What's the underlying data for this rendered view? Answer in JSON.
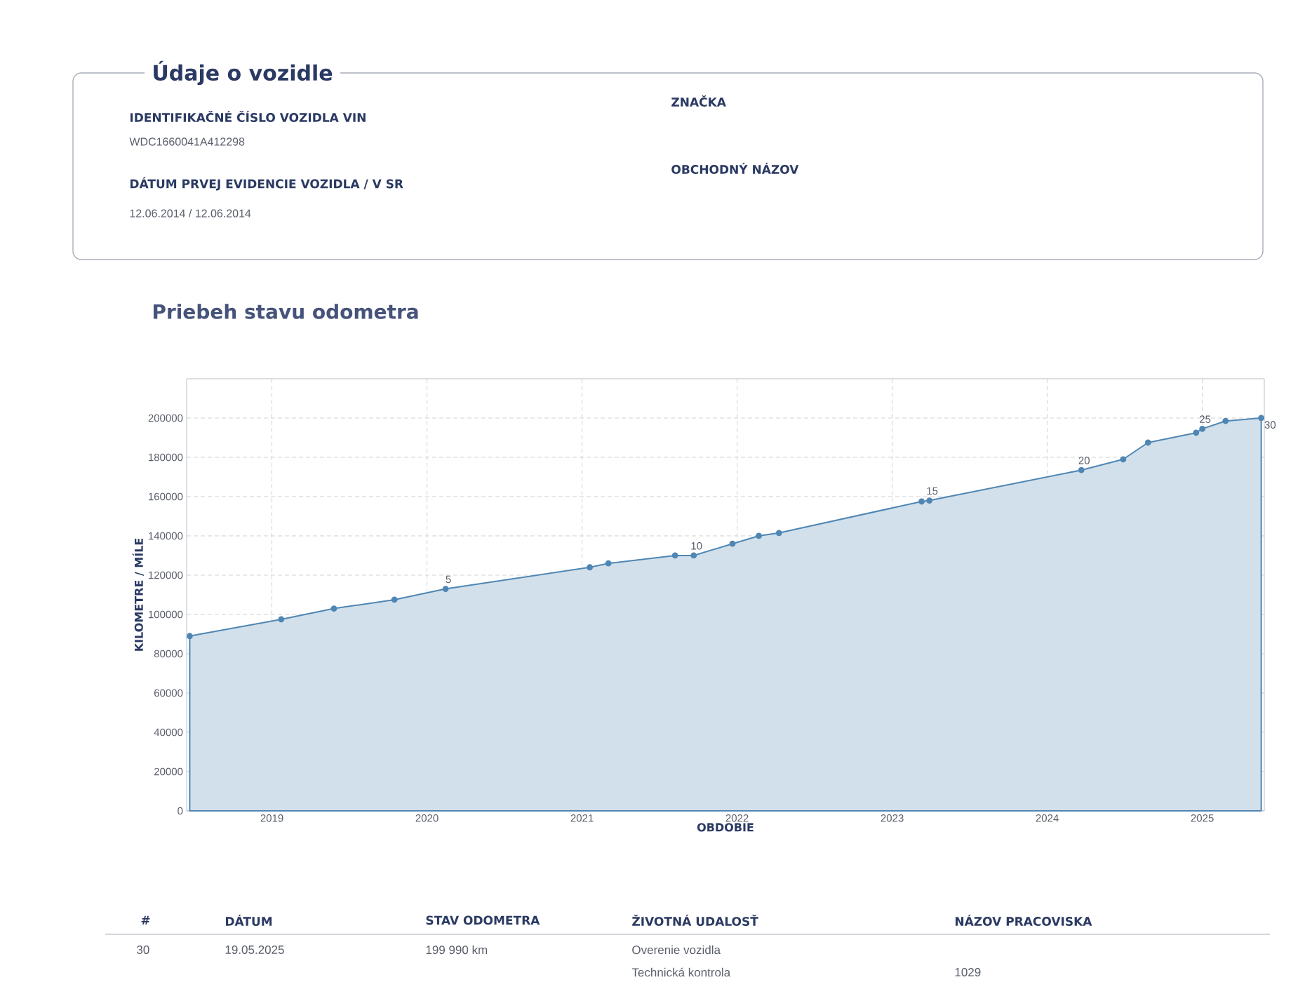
{
  "chart_data": {
    "type": "area",
    "title": "Priebeh stavu odometra",
    "xlabel": "OBDOBIE",
    "ylabel": "KILOMETRE / MÍLE",
    "x": [
      2018.47,
      2019.06,
      2019.4,
      2019.79,
      2020.12,
      2021.05,
      2021.17,
      2021.6,
      2021.72,
      2021.97,
      2022.14,
      2022.27,
      2023.19,
      2023.24,
      2024.22,
      2024.49,
      2024.65,
      2024.96,
      2025.0,
      2025.15,
      2025.38
    ],
    "values": [
      89000,
      97500,
      103000,
      107500,
      113000,
      124000,
      126000,
      130000,
      130000,
      136000,
      140000,
      141500,
      157500,
      158000,
      173500,
      179000,
      187500,
      192500,
      194500,
      198500,
      200000
    ],
    "color": "#4f86b3",
    "marker": "circle",
    "xlim": [
      2018.45,
      2025.4
    ],
    "xticks": [
      2019,
      2020,
      2021,
      2022,
      2023,
      2024,
      2025
    ],
    "ylim": [
      0,
      220000
    ],
    "yticks": [
      0,
      20000,
      40000,
      60000,
      80000,
      100000,
      120000,
      140000,
      160000,
      180000,
      200000
    ],
    "grid": true,
    "annotations": [
      "Údaje o vozidle",
      "IDENTIFIKAČNÉ ČÍSLO VOZIDLA VIN",
      "WDC1660041A412298",
      "DÁTUM PRVEJ EVIDENCIE VOZIDLA / V SR",
      "12.06.2014 / 12.06.2014",
      "ZNAČKA",
      "OBCHODNÝ NÁZOV",
      "#",
      "DÁTUM",
      "STAV ODOMETRA",
      "ŽIVOTNÁ UDALOSŤ",
      "NÁZOV PRACOVISKA",
      "30",
      "19.05.2025",
      "199 990 km",
      "Overenie vozidla",
      "Technická kontrola",
      "1029",
      {
        "text": "5",
        "x": 2020.12,
        "y": 113000
      },
      {
        "text": "10",
        "x": 2021.72,
        "y": 130000
      },
      {
        "text": "15",
        "x": 2023.24,
        "y": 158000
      },
      {
        "text": "20",
        "x": 2024.22,
        "y": 173500
      },
      {
        "text": "25",
        "x": 2025.0,
        "y": 194500
      },
      {
        "text": "30",
        "x": 2025.38,
        "y": 200000
      }
    ]
  }
}
